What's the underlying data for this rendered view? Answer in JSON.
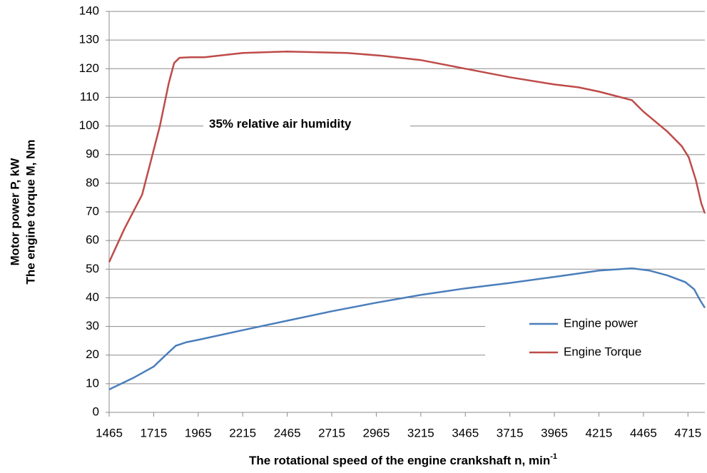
{
  "chart_data": {
    "type": "line",
    "x_label": "The rotational speed of the engine crankshaft n, min",
    "x_label_superscript": "-1",
    "y_label": [
      "Motor power P, kW",
      "The engine torque M, Nm"
    ],
    "annotation": "35%  relative air humidity",
    "xlim": [
      1465,
      4810
    ],
    "xticks": [
      1465,
      1715,
      1965,
      2215,
      2465,
      2715,
      2965,
      3215,
      3465,
      3715,
      3965,
      4215,
      4465,
      4715
    ],
    "ylim": [
      0,
      140
    ],
    "yticks": [
      0,
      10,
      20,
      30,
      40,
      50,
      60,
      70,
      80,
      90,
      100,
      110,
      120,
      130,
      140
    ],
    "grid": true,
    "legend": "right",
    "series": [
      {
        "name": "Engine power",
        "color": "#4a7ebb",
        "x": [
          1465,
          1600,
          1715,
          1800,
          1840,
          1900,
          1965,
          2215,
          2465,
          2715,
          2965,
          3215,
          3465,
          3715,
          3965,
          4215,
          4400,
          4500,
          4600,
          4700,
          4750,
          4780,
          4810
        ],
        "values": [
          8,
          12,
          16,
          21,
          23.3,
          24.5,
          25.3,
          28.7,
          32,
          35.3,
          38.3,
          41,
          43.3,
          45.2,
          47.3,
          49.5,
          50.3,
          49.5,
          47.8,
          45.5,
          43,
          39.5,
          36.5
        ]
      },
      {
        "name": "Engine Torque",
        "color": "#be4b48",
        "x": [
          1465,
          1550,
          1650,
          1700,
          1750,
          1800,
          1830,
          1860,
          1920,
          2000,
          2215,
          2465,
          2800,
          3000,
          3215,
          3465,
          3715,
          3965,
          4100,
          4215,
          4400,
          4465,
          4600,
          4680,
          4720,
          4760,
          4790,
          4810
        ],
        "values": [
          52.5,
          64,
          76,
          88,
          100,
          115,
          122,
          123.8,
          124,
          124,
          125.5,
          126,
          125.5,
          124.5,
          123,
          120,
          117,
          114.5,
          113.5,
          112,
          109,
          105,
          98,
          93,
          89,
          81,
          73,
          69.5
        ]
      }
    ]
  }
}
